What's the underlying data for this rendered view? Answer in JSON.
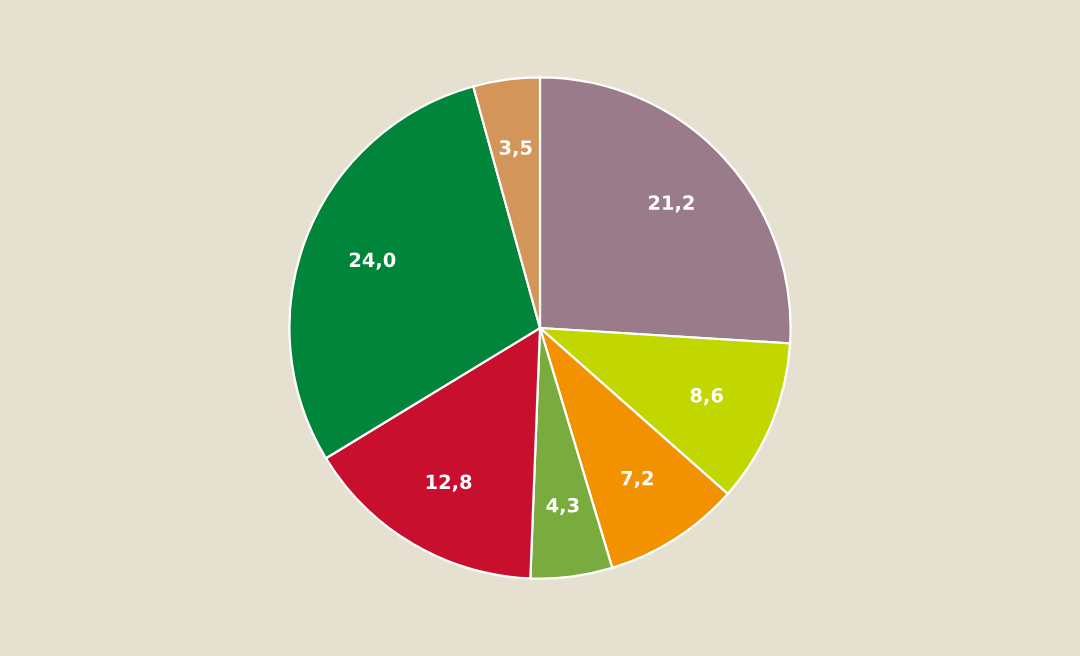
{
  "chart_data": {
    "type": "pie",
    "categories": [
      null,
      null,
      null,
      null,
      null,
      null,
      null
    ],
    "values": [
      21.2,
      8.6,
      7.2,
      4.3,
      12.8,
      24.0,
      3.5
    ],
    "value_labels": [
      "21,2",
      "8,6",
      "7,2",
      "4,3",
      "12,8",
      "24,0",
      "3,5"
    ],
    "colors": [
      "#9a7b8a",
      "#c2d600",
      "#f39200",
      "#7aab3e",
      "#c8102e",
      "#00853b",
      "#d4955a"
    ]
  }
}
